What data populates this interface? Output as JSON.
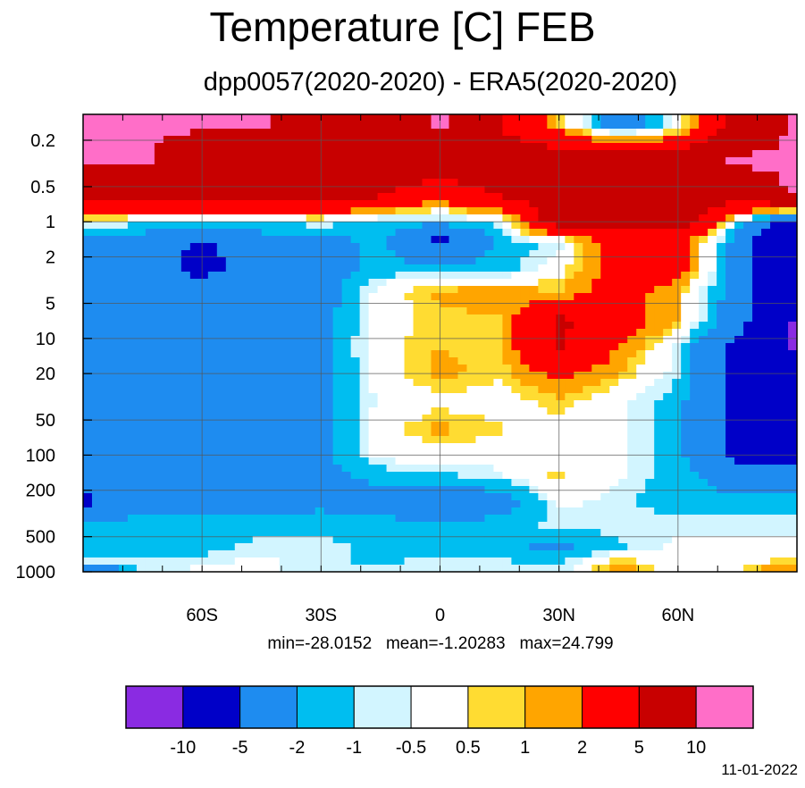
{
  "title": "Temperature [C] FEB",
  "subtitle": "dpp0057(2020-2020) - ERA5(2020-2020)",
  "stats": {
    "min": "min=-28.0152",
    "mean": "mean=-1.20283",
    "max": "max=24.799"
  },
  "date": "11-01-2022",
  "chart_data": {
    "type": "heatmap",
    "title": "Temperature [C] FEB",
    "subtitle": "dpp0057(2020-2020) - ERA5(2020-2020)",
    "x_axis": {
      "unit": "latitude",
      "range": [
        -90,
        90
      ],
      "ticks": [
        {
          "value": -60,
          "label": "60S"
        },
        {
          "value": -30,
          "label": "30S"
        },
        {
          "value": 0,
          "label": "0"
        },
        {
          "value": 30,
          "label": "30N"
        },
        {
          "value": 60,
          "label": "60N"
        }
      ]
    },
    "y_axis": {
      "unit": "pressure",
      "scale": "log",
      "inverted": true,
      "ticks": [
        {
          "value": 0.2,
          "label": "0.2"
        },
        {
          "value": 0.5,
          "label": "0.5"
        },
        {
          "value": 1,
          "label": "1"
        },
        {
          "value": 2,
          "label": "2"
        },
        {
          "value": 5,
          "label": "5"
        },
        {
          "value": 10,
          "label": "10"
        },
        {
          "value": 20,
          "label": "20"
        },
        {
          "value": 50,
          "label": "50"
        },
        {
          "value": 100,
          "label": "100"
        },
        {
          "value": 200,
          "label": "200"
        },
        {
          "value": 500,
          "label": "500"
        },
        {
          "value": 1000,
          "label": "1000"
        }
      ]
    },
    "grid": true,
    "colorbar": {
      "placement": "bottom",
      "levels": [
        "-10",
        "-5",
        "-2",
        "-1",
        "-0.5",
        "0.5",
        "1",
        "2",
        "5",
        "10"
      ],
      "colors": [
        "#8a2be2",
        "#0000c8",
        "#1e8cf0",
        "#00bef0",
        "#d2f5ff",
        "#ffffff",
        "#ffdc32",
        "#ffa500",
        "#ff0000",
        "#c80000",
        "#ff6ec8"
      ]
    },
    "field": {
      "lat": [
        -90,
        -75,
        -60,
        -45,
        -30,
        -15,
        0,
        15,
        30,
        45,
        60,
        75,
        90
      ],
      "levels": [
        0.15,
        0.3,
        0.6,
        1,
        1.5,
        2.5,
        4,
        7,
        12,
        20,
        35,
        60,
        100,
        150,
        250,
        400,
        600,
        850,
        1000
      ],
      "values": [
        [
          10.5,
          10.5,
          10.5,
          10.5,
          7,
          5,
          10.5,
          5,
          1,
          -3,
          -0.4,
          7,
          10.5
        ],
        [
          10.5,
          10.5,
          7,
          7,
          7,
          7,
          7,
          7,
          7,
          7,
          7,
          10.5,
          10.5
        ],
        [
          7,
          7,
          7,
          7,
          7,
          5,
          3,
          5,
          7,
          7,
          7,
          7,
          10.5
        ],
        [
          -0.4,
          -0.7,
          -0.8,
          -0.9,
          -0.5,
          -1.5,
          -1.5,
          -0.8,
          7,
          7,
          7,
          -0.8,
          -7
        ],
        [
          -3,
          -3,
          -5.5,
          -3,
          -3,
          -1.5,
          -6,
          -1.5,
          -0.8,
          3,
          3,
          -3,
          -10.5
        ],
        [
          -3,
          -3.5,
          -6,
          -3.5,
          -3,
          -1.5,
          -1.5,
          -1.5,
          0,
          3,
          3,
          -3,
          -10.5
        ],
        [
          -3,
          -3,
          -3.5,
          -3,
          -3,
          0.0,
          1.2,
          1.5,
          1,
          3,
          1,
          -3,
          -10.5
        ],
        [
          -3,
          -3,
          -3,
          -3,
          -2.5,
          0.0,
          0.8,
          0.9,
          5.5,
          3,
          1,
          -3.5,
          -10.5
        ],
        [
          -3,
          -3,
          -3,
          -3,
          -2.5,
          0.2,
          1.0,
          0.7,
          5.5,
          2,
          -0.7,
          -6,
          -10.5
        ],
        [
          -3,
          -3,
          -3,
          -3,
          -2.5,
          0.0,
          1.3,
          0.6,
          2.5,
          1,
          -0.9,
          -6,
          -6
        ],
        [
          -3,
          -3,
          -3,
          -3,
          -2.5,
          -0.3,
          0.2,
          0.0,
          0.8,
          -0.3,
          -1.5,
          -6,
          -6
        ],
        [
          -3,
          -3,
          -3,
          -3,
          -2.5,
          0.0,
          1.3,
          0.6,
          0.2,
          -0.3,
          -1.5,
          -6,
          -6
        ],
        [
          -3,
          -3,
          -3,
          -3,
          -2.5,
          -0.2,
          0.0,
          -0.2,
          0.1,
          -0.4,
          -1.5,
          -6,
          -6
        ],
        [
          -3,
          -3,
          -3,
          -3,
          -2.5,
          -1.5,
          -1.2,
          -0.6,
          0.7,
          -0.4,
          -1.5,
          -3,
          -3
        ],
        [
          -6,
          -2.5,
          -3,
          -3,
          -2.5,
          -3,
          -3.5,
          -3,
          -0.3,
          -0.8,
          -1.5,
          -1.5,
          -1.5
        ],
        [
          -1.5,
          -1.5,
          -1.5,
          -1.5,
          -1.2,
          -1.5,
          -1.5,
          -1.5,
          -0.8,
          -0.7,
          -0.6,
          -0.7,
          -0.7
        ],
        [
          -1.5,
          -1.5,
          -1.5,
          -0.7,
          -0.8,
          -1.2,
          -1.5,
          -1.5,
          -2.5,
          -1.2,
          -0.3,
          -0.4,
          -0.4
        ],
        [
          -0.9,
          -0.4,
          -0.6,
          -0.3,
          -0.8,
          -1.2,
          -0.6,
          -0.8,
          -1.2,
          1.2,
          -0.3,
          -0.2,
          1.2
        ],
        [
          -6,
          -1.2,
          -0.3,
          -0.4,
          -0.9,
          -0.7,
          -0.4,
          -0.6,
          -0.7,
          1.5,
          -0.1,
          0.6,
          2.5
        ]
      ]
    }
  }
}
